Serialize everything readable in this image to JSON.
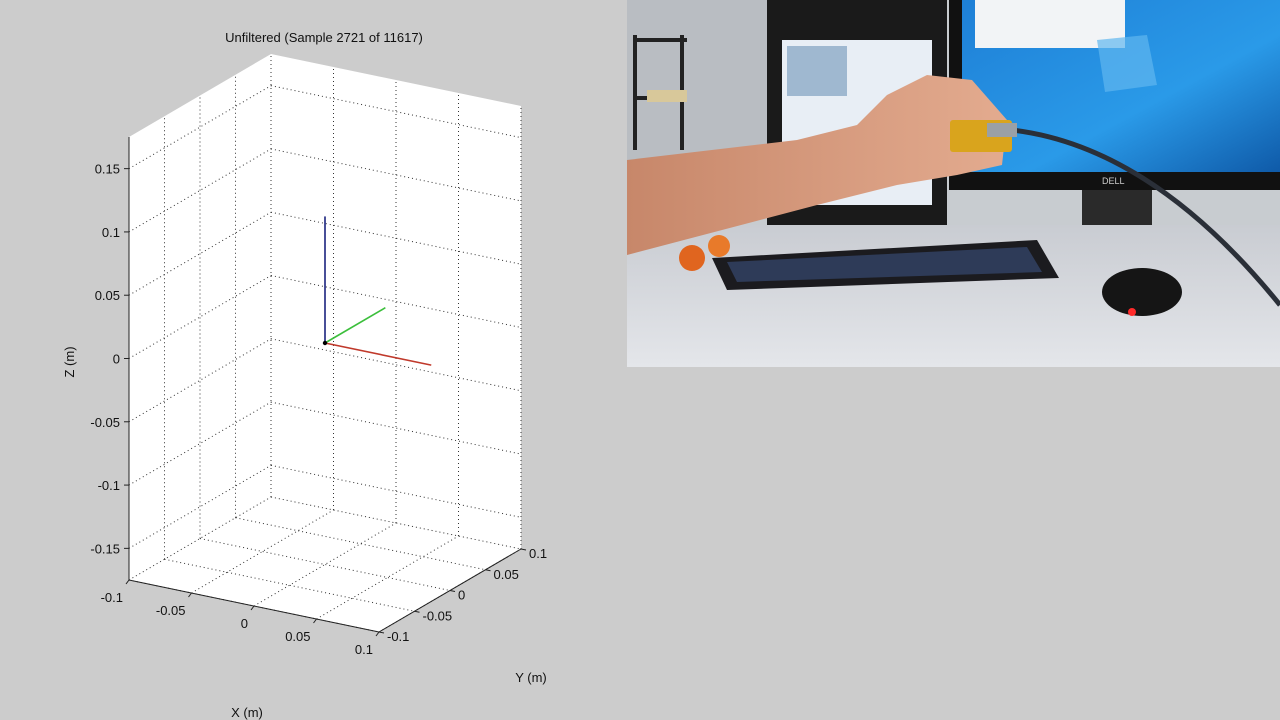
{
  "chart_data": {
    "type": "line3d",
    "title": "Unfiltered (Sample 2721 of 11617)",
    "xlabel": "X (m)",
    "ylabel": "Y (m)",
    "zlabel": "Z (m)",
    "xlim": [
      -0.1,
      0.1
    ],
    "ylim": [
      -0.1,
      0.1
    ],
    "zlim": [
      -0.175,
      0.175
    ],
    "grid": true,
    "x_ticks": [
      -0.1,
      -0.05,
      0,
      0.05,
      0.1
    ],
    "x_tick_labels": [
      "-0.1",
      "-0.05",
      "0",
      "0.05",
      "0.1"
    ],
    "y_ticks": [
      -0.1,
      -0.05,
      0,
      0.05,
      0.1
    ],
    "y_tick_labels": [
      "-0.1",
      "-0.05",
      "0",
      "0.05",
      "0.1"
    ],
    "z_ticks": [
      -0.15,
      -0.1,
      -0.05,
      0,
      0.05,
      0.1,
      0.15
    ],
    "z_tick_labels": [
      "-0.15",
      "-0.1",
      "-0.05",
      "0",
      "0.05",
      "0.1",
      "0.15"
    ],
    "series": [
      {
        "axis": "x",
        "color": "#c0392b",
        "from": [
          0,
          0,
          0
        ],
        "to": [
          0.085,
          0,
          0
        ]
      },
      {
        "axis": "y",
        "color": "#3cbf3c",
        "from": [
          0,
          0,
          0
        ],
        "to": [
          0,
          0.085,
          0
        ]
      },
      {
        "axis": "z",
        "color": "#1a237e",
        "from": [
          0,
          0,
          0
        ],
        "to": [
          0,
          0,
          0.1
        ]
      }
    ],
    "origin_marker_color": "#000000"
  },
  "video": {
    "brand": "DELL"
  }
}
